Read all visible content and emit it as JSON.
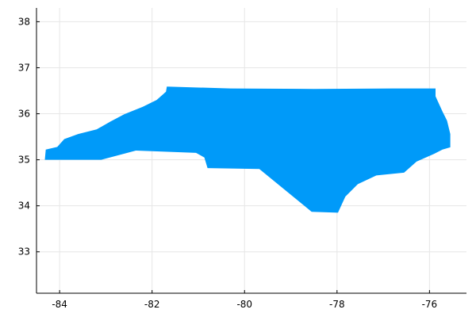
{
  "chart_data": {
    "type": "map",
    "title": "",
    "xlabel": "",
    "ylabel": "",
    "xlim": [
      -84.5,
      -75.2
    ],
    "ylim": [
      32.1,
      38.3
    ],
    "xticks": [
      -84,
      -82,
      -80,
      -78,
      -76
    ],
    "yticks": [
      33,
      34,
      35,
      36,
      37,
      38
    ],
    "xtick_labels": [
      "-84",
      "-82",
      "-80",
      "-78",
      "-76"
    ],
    "ytick_labels": [
      "33",
      "34",
      "35",
      "36",
      "37",
      "38"
    ],
    "grid": true,
    "legend": "none",
    "fill_color": "#009af9",
    "series": [
      {
        "type": "polygon",
        "points": [
          [
            -84.32,
            35.0
          ],
          [
            -84.3,
            35.22
          ],
          [
            -84.05,
            35.28
          ],
          [
            -83.9,
            35.45
          ],
          [
            -83.6,
            35.56
          ],
          [
            -83.2,
            35.66
          ],
          [
            -82.9,
            35.83
          ],
          [
            -82.6,
            35.99
          ],
          [
            -82.2,
            36.15
          ],
          [
            -81.9,
            36.3
          ],
          [
            -81.7,
            36.48
          ],
          [
            -81.68,
            36.59
          ],
          [
            -80.3,
            36.55
          ],
          [
            -78.5,
            36.54
          ],
          [
            -76.8,
            36.55
          ],
          [
            -75.87,
            36.55
          ],
          [
            -75.87,
            36.38
          ],
          [
            -75.72,
            36.05
          ],
          [
            -75.62,
            35.85
          ],
          [
            -75.55,
            35.56
          ],
          [
            -75.55,
            35.27
          ],
          [
            -75.72,
            35.22
          ],
          [
            -75.9,
            35.13
          ],
          [
            -76.28,
            34.96
          ],
          [
            -76.55,
            34.72
          ],
          [
            -77.15,
            34.66
          ],
          [
            -77.55,
            34.47
          ],
          [
            -77.82,
            34.2
          ],
          [
            -77.98,
            33.85
          ],
          [
            -78.55,
            33.87
          ],
          [
            -79.68,
            34.8
          ],
          [
            -80.8,
            34.82
          ],
          [
            -80.87,
            35.05
          ],
          [
            -81.05,
            35.15
          ],
          [
            -82.35,
            35.2
          ],
          [
            -83.1,
            35.0
          ]
        ]
      }
    ]
  }
}
